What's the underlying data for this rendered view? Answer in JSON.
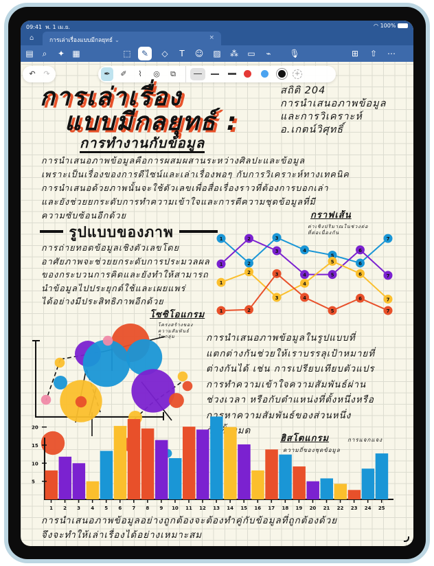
{
  "status_bar": {
    "time": "09:41",
    "date": "พ. 1 เม.ย.",
    "battery": "100%"
  },
  "tab": {
    "title": "การเล่าเรื่องแบบมีกลยุทธ์",
    "close": "×",
    "chevron": "⌄"
  },
  "toolbar": {
    "left": [
      {
        "name": "sidebar-icon",
        "glyph": "▤"
      },
      {
        "name": "search-icon",
        "glyph": "⌕"
      },
      {
        "name": "magic-icon",
        "glyph": "✦"
      },
      {
        "name": "document-icon",
        "glyph": "▦"
      }
    ],
    "center": [
      {
        "name": "lasso-icon",
        "glyph": "⬚"
      },
      {
        "name": "pen-icon",
        "glyph": "✎",
        "active": true
      },
      {
        "name": "eraser-icon",
        "glyph": "◇"
      },
      {
        "name": "textbox-icon",
        "glyph": "T"
      },
      {
        "name": "sticker-icon",
        "glyph": "☺"
      },
      {
        "name": "image-icon",
        "glyph": "▨"
      },
      {
        "name": "shapes-icon",
        "glyph": "⁂"
      },
      {
        "name": "note-icon",
        "glyph": "▭"
      },
      {
        "name": "tape-icon",
        "glyph": "⌁"
      },
      {
        "name": "microphone-icon",
        "glyph": "🎙"
      }
    ],
    "right": [
      {
        "name": "add-page-icon",
        "glyph": "⊞"
      },
      {
        "name": "share-icon",
        "glyph": "⇧"
      },
      {
        "name": "more-icon",
        "glyph": "⋯"
      }
    ]
  },
  "pen_palette": {
    "undo": "↶",
    "redo": "↷",
    "tools": [
      {
        "name": "fountain-pen-icon",
        "glyph": "✒",
        "active": true
      },
      {
        "name": "ballpoint-icon",
        "glyph": "✐"
      },
      {
        "name": "highlighter-icon",
        "glyph": "⌇"
      },
      {
        "name": "spiral-icon",
        "glyph": "◎"
      },
      {
        "name": "shape-tool-icon",
        "glyph": "⧉"
      }
    ],
    "colors": [
      "#e53935",
      "#4aa3f0",
      "#111111"
    ],
    "add": "+"
  },
  "note": {
    "title_line1": "การเล่าเรื่อง",
    "title_line2": "แบบมีกลยุทธ์ :",
    "subtitle": "การทำงานกับข้อมูล",
    "course": [
      "สถิติ 204",
      "การนำเสนอภาพข้อมูล",
      "และการวิเคราะห์",
      "อ.เกตน์วิศุทธิ์"
    ],
    "intro": [
      "การนำเสนอภาพข้อมูลคือการผสมผสานระหว่างศิลปะและข้อมูล",
      "เพราะเป็นเรื่องของการดีไซน์และเล่าเรื่องพอๆ กับการวิเคราะห์ทางเทคนิค",
      "การนำเสนอด้วยภาพนั้นจะใช้ตัวเลขเพื่อสื่อเรื่องราวที่ต้องการบอกเล่า",
      "และยังช่วยยกระดับการทำความเข้าใจและการตีความชุดข้อมูลที่มี",
      "ความซับซ้อนอีกด้วย"
    ],
    "section_heading": "รูปแบบของภาพ",
    "section_text": [
      "การถ่ายทอดข้อมูลเชิงตัวเลขโดย",
      "อาศัยภาพจะช่วยยกระดับการประมวลผล",
      "ของกระบวนการคิดและยังทำให้สามารถ",
      "นำข้อมูลไปประยุกต์ใช้และเผยแพร่",
      "ได้อย่างมีประสิทธิภาพอีกด้วย"
    ],
    "sociogram_label": "โซซิโอแกรม",
    "sociogram_note": [
      "โครงสร้างของ",
      "ความสัมพันธ์",
      "ในกลุ่ม"
    ],
    "line_chart_label": "กราฟเส้น",
    "line_chart_note": [
      "ค่าเชิงปริมาณในช่วงต่อ",
      "ที่ต่อเนื่องกัน"
    ],
    "compare_text": [
      "การนำเสนอภาพข้อมูลในรูปแบบที่",
      "แตกต่างกันช่วยให้เราบรรลุเป้าหมายที่",
      "ต่างกันได้ เช่น การเปรียบเทียบตัวแปร",
      "การทำความเข้าใจความสัมพันธ์ผ่าน",
      "ช่วงเวลา หรือกับตำแหน่งที่ตั้งหนึ่งหรือ",
      "การหาความสัมพันธ์ของส่วนหนึ่ง",
      "กับทั้งหมด"
    ],
    "histogram_label": "ฮิสโตแกรม",
    "histogram_note": [
      "การแจกแจง",
      "ความถี่ของชุดข้อมูล"
    ],
    "closing": [
      "การนำเสนอภาพข้อมูลอย่างถูกต้องจะต้องทำคู่กับข้อมูลที่ถูกต้องด้วย",
      "จึงจะทำให้เล่าเรื่องได้อย่างเหมาะสม"
    ]
  },
  "colors": {
    "red": "#e8502a",
    "purple": "#7b22d0",
    "yellow": "#fbbf2d",
    "blue": "#1a96d6",
    "pink": "#f08aa8",
    "toolbar": "#2c5896"
  },
  "chart_data": [
    {
      "type": "line",
      "title": "กราฟเส้น",
      "x": [
        1,
        2,
        3,
        4,
        5,
        6,
        7
      ],
      "series": [
        {
          "color": "blue",
          "values": [
            9.6,
            6.8,
            9.7,
            8.3,
            7.7,
            6.8,
            9.6
          ]
        },
        {
          "color": "purple",
          "values": [
            6.7,
            9.6,
            8.2,
            5.5,
            5.5,
            8.3,
            5.4
          ]
        },
        {
          "color": "yellow",
          "values": [
            4.6,
            5.8,
            2.9,
            4.5,
            7.0,
            5.6,
            2.7
          ]
        },
        {
          "color": "red",
          "values": [
            1.4,
            1.5,
            5.6,
            2.9,
            1.4,
            2.8,
            1.4
          ]
        }
      ],
      "ylim": [
        0,
        10
      ]
    },
    {
      "type": "bar",
      "title": "ฮิสโตแกรม",
      "categories": [
        "1",
        "2",
        "3",
        "4",
        "5",
        "6",
        "7",
        "8",
        "9",
        "10",
        "11",
        "12",
        "13",
        "14",
        "15",
        "16",
        "17",
        "18",
        "19",
        "20",
        "21",
        "22",
        "23",
        "24",
        "25"
      ],
      "values": [
        8,
        11.8,
        10,
        5,
        13.4,
        20.3,
        22.2,
        19.6,
        16.4,
        11.4,
        20.1,
        19.3,
        22.9,
        20,
        15.2,
        8,
        13.8,
        12.4,
        9.1,
        5,
        5.8,
        4.3,
        2.6,
        8.5,
        12.7
      ],
      "bar_colors": [
        "red",
        "purple",
        "purple",
        "yellow",
        "blue",
        "yellow",
        "red",
        "red",
        "purple",
        "blue",
        "red",
        "purple",
        "blue",
        "yellow",
        "purple",
        "yellow",
        "red",
        "blue",
        "red",
        "purple",
        "blue",
        "yellow",
        "red",
        "blue",
        "blue"
      ],
      "yticks": [
        "5",
        "10",
        "15",
        "20"
      ],
      "ylim": [
        0,
        24
      ]
    }
  ]
}
